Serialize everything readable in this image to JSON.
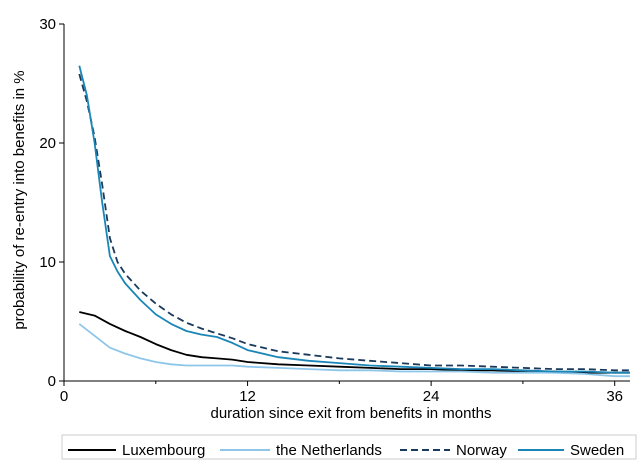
{
  "chart_data": {
    "type": "line",
    "title": "",
    "xlabel": "duration since exit from benefits in months",
    "ylabel": "probability of re-entry into benefits in %",
    "xlim": [
      0,
      37
    ],
    "ylim": [
      0,
      30
    ],
    "xticks": [
      0,
      12,
      24,
      36
    ],
    "minor_xticks": [
      6,
      18,
      30
    ],
    "yticks": [
      0,
      10,
      20,
      30
    ],
    "grid": false,
    "legend_position": "bottom",
    "series": [
      {
        "name": "Luxembourg",
        "color": "#000000",
        "dash": "solid",
        "x": [
          1,
          2,
          3,
          4,
          5,
          6,
          7,
          8,
          9,
          10,
          11,
          12,
          14,
          16,
          18,
          20,
          22,
          24,
          26,
          28,
          30,
          32,
          34,
          36,
          37
        ],
        "y": [
          5.8,
          5.5,
          4.8,
          4.2,
          3.7,
          3.1,
          2.6,
          2.2,
          2.0,
          1.9,
          1.8,
          1.6,
          1.4,
          1.3,
          1.2,
          1.1,
          1.0,
          1.0,
          0.9,
          0.9,
          0.8,
          0.8,
          0.7,
          0.7,
          0.7
        ]
      },
      {
        "name": "the Netherlands",
        "color": "#8ec6ea",
        "dash": "solid",
        "x": [
          1,
          2,
          3,
          4,
          5,
          6,
          7,
          8,
          9,
          10,
          11,
          12,
          14,
          16,
          18,
          20,
          22,
          24,
          26,
          28,
          30,
          32,
          34,
          36,
          37
        ],
        "y": [
          4.8,
          3.8,
          2.8,
          2.3,
          1.9,
          1.6,
          1.4,
          1.3,
          1.3,
          1.3,
          1.3,
          1.2,
          1.1,
          1.0,
          0.9,
          0.9,
          0.8,
          0.8,
          0.8,
          0.7,
          0.7,
          0.7,
          0.6,
          0.4,
          0.4
        ]
      },
      {
        "name": "Norway",
        "color": "#1a3a5c",
        "dash": "dashed",
        "x": [
          1,
          1.5,
          2,
          2.5,
          3,
          3.5,
          4,
          5,
          6,
          7,
          8,
          9,
          10,
          11,
          12,
          14,
          16,
          18,
          20,
          22,
          24,
          26,
          28,
          30,
          32,
          34,
          36,
          37
        ],
        "y": [
          25.8,
          23.5,
          20.5,
          16.5,
          12.0,
          10.0,
          9.0,
          7.6,
          6.5,
          5.6,
          4.9,
          4.4,
          4.0,
          3.6,
          3.1,
          2.5,
          2.2,
          1.9,
          1.7,
          1.5,
          1.3,
          1.3,
          1.2,
          1.1,
          1.0,
          1.0,
          0.9,
          0.9
        ]
      },
      {
        "name": "Sweden",
        "color": "#1a86b8",
        "dash": "solid",
        "x": [
          1,
          1.5,
          2,
          2.5,
          3,
          3.5,
          4,
          5,
          6,
          7,
          8,
          9,
          10,
          11,
          12,
          14,
          16,
          18,
          20,
          22,
          24,
          26,
          28,
          30,
          32,
          34,
          36,
          37
        ],
        "y": [
          26.5,
          24.0,
          20.0,
          15.0,
          10.5,
          9.2,
          8.2,
          6.8,
          5.6,
          4.8,
          4.2,
          3.9,
          3.7,
          3.2,
          2.6,
          2.0,
          1.7,
          1.5,
          1.3,
          1.2,
          1.1,
          1.0,
          1.0,
          0.9,
          0.8,
          0.8,
          0.7,
          0.7
        ]
      }
    ]
  }
}
